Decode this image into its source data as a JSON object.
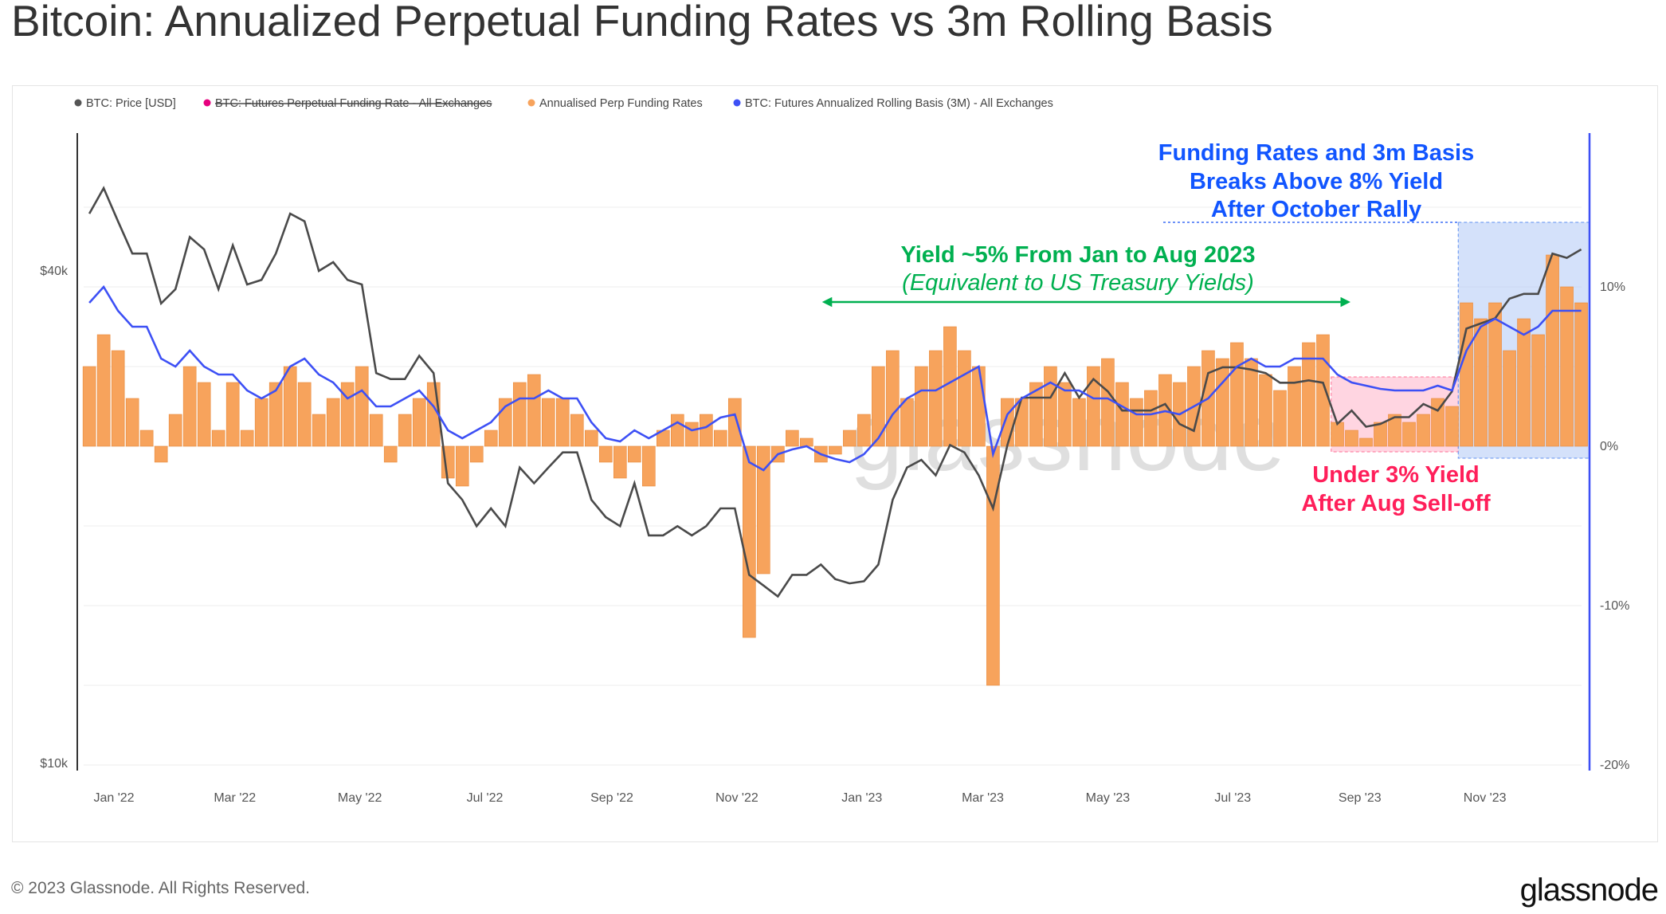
{
  "title": "Bitcoin: Annualized Perpetual Funding Rates vs 3m Rolling Basis",
  "footer": "© 2023 Glassnode. All Rights Reserved.",
  "logo": "glassnode",
  "watermark": "glassnode",
  "chart_data": {
    "type": "bar+line",
    "title": "Bitcoin: Annualized Perpetual Funding Rates vs 3m Rolling Basis",
    "legend_position": "top-left",
    "grid": true,
    "legend": [
      {
        "label": "BTC: Price [USD]",
        "color": "#555555",
        "hidden": false
      },
      {
        "label": "BTC: Futures Perpetual Funding Rate - All Exchanges",
        "color": "#e6007e",
        "hidden": true
      },
      {
        "label": "Annualised Perp Funding Rates",
        "color": "#f7a35c",
        "hidden": false
      },
      {
        "label": "BTC: Futures Annualized Rolling Basis (3M) - All Exchanges",
        "color": "#3d50f5",
        "hidden": false
      }
    ],
    "x_ticks": [
      "Jan '22",
      "Mar '22",
      "May '22",
      "Jul '22",
      "Sep '22",
      "Nov '22",
      "Jan '23",
      "Mar '23",
      "May '23",
      "Jul '23",
      "Sep '23",
      "Nov '23"
    ],
    "x_tick_dates": [
      "2022-01-01",
      "2022-03-01",
      "2022-05-01",
      "2022-07-01",
      "2022-09-01",
      "2022-11-01",
      "2023-01-01",
      "2023-03-01",
      "2023-05-01",
      "2023-07-01",
      "2023-09-01",
      "2023-11-01"
    ],
    "y_left": {
      "scale": "log",
      "ticks": [
        "$40k",
        "$10k"
      ],
      "tick_values": [
        40000,
        10000
      ]
    },
    "y_right": {
      "scale": "linear",
      "ticks": [
        "10%",
        "0%",
        "-10%",
        "-20%"
      ],
      "tick_values": [
        10,
        0,
        -10,
        -20
      ],
      "range": [
        -20,
        17
      ]
    },
    "x": [
      "2021-12-20",
      "2021-12-27",
      "2022-01-03",
      "2022-01-10",
      "2022-01-17",
      "2022-01-24",
      "2022-01-31",
      "2022-02-07",
      "2022-02-14",
      "2022-02-21",
      "2022-02-28",
      "2022-03-07",
      "2022-03-14",
      "2022-03-21",
      "2022-03-28",
      "2022-04-04",
      "2022-04-11",
      "2022-04-18",
      "2022-04-25",
      "2022-05-02",
      "2022-05-09",
      "2022-05-16",
      "2022-05-23",
      "2022-05-30",
      "2022-06-06",
      "2022-06-13",
      "2022-06-20",
      "2022-06-27",
      "2022-07-04",
      "2022-07-11",
      "2022-07-18",
      "2022-07-25",
      "2022-08-01",
      "2022-08-08",
      "2022-08-15",
      "2022-08-22",
      "2022-08-29",
      "2022-09-05",
      "2022-09-12",
      "2022-09-19",
      "2022-09-26",
      "2022-10-03",
      "2022-10-10",
      "2022-10-17",
      "2022-10-24",
      "2022-10-31",
      "2022-11-07",
      "2022-11-14",
      "2022-11-21",
      "2022-11-28",
      "2022-12-05",
      "2022-12-12",
      "2022-12-19",
      "2022-12-26",
      "2023-01-02",
      "2023-01-09",
      "2023-01-16",
      "2023-01-23",
      "2023-01-30",
      "2023-02-06",
      "2023-02-13",
      "2023-02-20",
      "2023-02-27",
      "2023-03-06",
      "2023-03-13",
      "2023-03-20",
      "2023-03-27",
      "2023-04-03",
      "2023-04-10",
      "2023-04-17",
      "2023-04-24",
      "2023-05-01",
      "2023-05-08",
      "2023-05-15",
      "2023-05-22",
      "2023-05-29",
      "2023-06-05",
      "2023-06-12",
      "2023-06-19",
      "2023-06-26",
      "2023-07-03",
      "2023-07-10",
      "2023-07-17",
      "2023-07-24",
      "2023-07-31",
      "2023-08-07",
      "2023-08-14",
      "2023-08-21",
      "2023-08-28",
      "2023-09-04",
      "2023-09-11",
      "2023-09-18",
      "2023-09-25",
      "2023-10-02",
      "2023-10-09",
      "2023-10-16",
      "2023-10-23",
      "2023-10-30",
      "2023-11-06",
      "2023-11-13",
      "2023-11-20",
      "2023-11-27",
      "2023-12-04",
      "2023-12-11",
      "2023-12-18"
    ],
    "series": [
      {
        "name": "BTC: Price [USD]",
        "axis": "left",
        "type": "line",
        "values": [
          47000,
          50500,
          46000,
          42000,
          42000,
          36500,
          38000,
          44000,
          42500,
          38000,
          43000,
          38500,
          39000,
          42000,
          47000,
          46000,
          40000,
          41000,
          39000,
          38500,
          30000,
          29500,
          29500,
          31500,
          30000,
          22000,
          21000,
          19500,
          20500,
          19500,
          23000,
          22000,
          23000,
          24000,
          24000,
          21000,
          20000,
          19500,
          22000,
          19000,
          19000,
          19500,
          19000,
          19500,
          20500,
          20500,
          17000,
          16500,
          16000,
          17000,
          17000,
          17500,
          16800,
          16600,
          16700,
          17500,
          21000,
          23000,
          23500,
          22500,
          24500,
          24000,
          22500,
          20500,
          24500,
          28000,
          28000,
          28000,
          30000,
          28000,
          29500,
          28500,
          27000,
          27000,
          27000,
          27500,
          26000,
          25500,
          30000,
          30500,
          30500,
          30300,
          30000,
          29200,
          29200,
          29400,
          29200,
          26000,
          27000,
          25800,
          26000,
          26500,
          26500,
          27500,
          27000,
          28500,
          34000,
          34500,
          35000,
          37000,
          37500,
          37500,
          42000,
          41500,
          42500
        ]
      },
      {
        "name": "Annualised Perp Funding Rates",
        "axis": "right",
        "type": "bar",
        "values": [
          5,
          7,
          6,
          3,
          1,
          -1,
          2,
          5,
          4,
          1,
          4,
          1,
          3,
          4,
          5,
          4,
          2,
          3,
          4,
          5,
          2,
          -1,
          2,
          3,
          4,
          -2,
          -2.5,
          -1,
          1,
          3,
          4,
          4.5,
          3,
          3,
          2,
          1,
          -1,
          -2,
          -1,
          -2.5,
          1,
          2,
          1.5,
          2,
          1,
          3,
          -12,
          -8,
          -1,
          1,
          0.5,
          -1,
          -0.5,
          1,
          2,
          5,
          6,
          3,
          5,
          6,
          7.5,
          6,
          5,
          -15,
          3,
          3,
          4,
          5,
          4,
          3,
          5,
          5.5,
          4,
          3,
          3.5,
          4.5,
          4,
          5,
          6,
          5.5,
          6.5,
          5.5,
          4.5,
          3.5,
          5,
          6.5,
          7,
          1.5,
          1,
          0.5,
          1.5,
          2,
          1.5,
          2,
          3,
          2.5,
          9,
          8,
          9,
          6,
          8,
          7,
          12,
          10,
          9
        ]
      },
      {
        "name": "BTC: Futures Annualized Rolling Basis (3M) - All Exchanges",
        "axis": "right",
        "type": "line",
        "values": [
          9,
          10,
          8.5,
          7.5,
          7.5,
          5.5,
          5,
          6,
          5,
          4.5,
          4.5,
          3.5,
          3,
          3.5,
          5,
          5.5,
          4.5,
          4,
          3,
          3.5,
          2.5,
          2.5,
          3,
          3.5,
          2.5,
          1,
          0.5,
          1,
          1.5,
          2.5,
          3,
          3,
          3.5,
          3,
          3,
          1.5,
          0.5,
          0.3,
          1,
          0.5,
          1,
          1.5,
          1,
          1.2,
          1.8,
          2,
          -1,
          -1.5,
          -0.5,
          -0.2,
          0,
          -0.5,
          -0.8,
          -1,
          -0.5,
          0.5,
          2,
          3,
          3.5,
          3.5,
          4,
          4.5,
          5,
          -0.5,
          2,
          3,
          3.5,
          4,
          3.5,
          3.5,
          3,
          3,
          2.5,
          2,
          2,
          2.2,
          2,
          2.5,
          3,
          4,
          5,
          5.5,
          5,
          5,
          5.5,
          5.5,
          5.5,
          4.5,
          4,
          3.8,
          3.6,
          3.5,
          3.5,
          3.5,
          3.8,
          3.5,
          6,
          7.5,
          8,
          7.5,
          7,
          7.5,
          8.5,
          8.5,
          8.5
        ]
      }
    ],
    "annotations": {
      "green": {
        "line1": "Yield ~5% From Jan to Aug 2023",
        "line2": "(Equivalent to US Treasury Yields)",
        "color": "#00b050",
        "from": "2022-12-15",
        "to": "2023-08-25"
      },
      "blue": {
        "lines": [
          "Funding Rates and 3m Basis",
          "Breaks Above 8% Yield",
          "After October Rally"
        ],
        "color": "#1155ff",
        "from": "2023-10-19",
        "to": "2023-12-22"
      },
      "red": {
        "lines": [
          "Under 3% Yield",
          "After Aug Sell-off"
        ],
        "color": "#ff1f5a",
        "from": "2023-08-18",
        "to": "2023-10-19"
      }
    }
  }
}
